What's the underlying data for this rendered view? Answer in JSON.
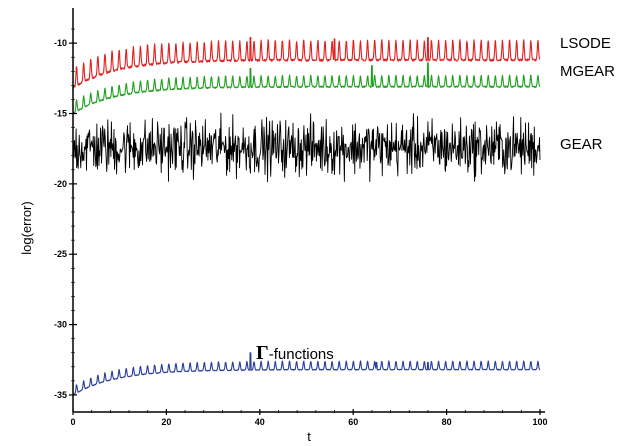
{
  "chart_data": {
    "type": "line",
    "title": "",
    "xlabel": "t",
    "ylabel": "log(error)",
    "xlim": [
      0,
      100
    ],
    "ylim": [
      -35.5,
      -8
    ],
    "x_ticks": [
      0,
      20,
      40,
      60,
      80,
      100
    ],
    "y_ticks": [
      -10,
      -15,
      -20,
      -25,
      -30,
      -35
    ],
    "x_tick_labels": [
      "0",
      "20",
      "40",
      "60",
      "80",
      "100"
    ],
    "y_tick_labels": [
      "-10",
      "-15",
      "-20",
      "-25",
      "-30",
      "-35"
    ],
    "grid": false,
    "legend": "inline labels at right of each curve",
    "series": [
      {
        "name": "LSODE",
        "color": "#e02020",
        "pattern": "periodic spikes",
        "start": -13.2,
        "baseline_end": -11.2,
        "spike_height": 1.4,
        "noise": 0.15,
        "big_spikes": [
          {
            "t": 38,
            "y": -9.6
          },
          {
            "t": 56,
            "y": -9.7
          },
          {
            "t": 76,
            "y": -9.6
          }
        ]
      },
      {
        "name": "MGEAR",
        "color": "#20a020",
        "pattern": "periodic spikes",
        "start": -15.0,
        "baseline_end": -13.1,
        "spike_height": 0.8,
        "noise": 0.1,
        "big_spikes": [
          {
            "t": 38,
            "y": -11.8
          },
          {
            "t": 64,
            "y": -11.6
          },
          {
            "t": 76,
            "y": -11.4
          }
        ]
      },
      {
        "name": "GEAR",
        "color": "#000000",
        "pattern": "random noise",
        "center": -17.4,
        "amplitude": 1.6
      },
      {
        "name_symbol": "Γ",
        "name": "-functions",
        "color": "#283c9c",
        "pattern": "periodic spikes",
        "start": -35.0,
        "baseline_end": -33.2,
        "spike_height": 0.6,
        "noise": 0.05,
        "big_spikes": [
          {
            "t": 38,
            "y": -32.0
          },
          {
            "t": 65,
            "y": -32.7
          },
          {
            "t": 76,
            "y": -32.7
          }
        ]
      }
    ]
  }
}
